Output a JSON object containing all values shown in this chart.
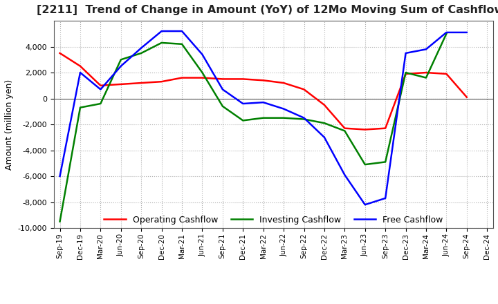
{
  "title": "[2211]  Trend of Change in Amount (YoY) of 12Mo Moving Sum of Cashflows",
  "ylabel": "Amount (million yen)",
  "ylim": [
    -10000,
    6000
  ],
  "yticks": [
    -10000,
    -8000,
    -6000,
    -4000,
    -2000,
    0,
    2000,
    4000
  ],
  "x_labels": [
    "Sep-19",
    "Dec-19",
    "Mar-20",
    "Jun-20",
    "Sep-20",
    "Dec-20",
    "Mar-21",
    "Jun-21",
    "Sep-21",
    "Dec-21",
    "Mar-22",
    "Jun-22",
    "Sep-22",
    "Dec-22",
    "Mar-23",
    "Jun-23",
    "Sep-23",
    "Dec-23",
    "Mar-24",
    "Jun-24",
    "Sep-24",
    "Dec-24"
  ],
  "operating": [
    3500,
    2500,
    1000,
    1100,
    1200,
    1300,
    1600,
    1600,
    1500,
    1500,
    1400,
    1200,
    700,
    -500,
    -2300,
    -2400,
    -2300,
    1900,
    2000,
    1900,
    100,
    null
  ],
  "investing": [
    -9500,
    -700,
    -400,
    3000,
    3500,
    4300,
    4200,
    2000,
    -600,
    -1700,
    -1500,
    -1500,
    -1600,
    -1900,
    -2500,
    -5100,
    -4900,
    2000,
    1600,
    5000,
    null,
    null
  ],
  "free": [
    -6000,
    2000,
    700,
    2500,
    3900,
    5200,
    5200,
    3400,
    700,
    -400,
    -300,
    -800,
    -1500,
    -3000,
    -5900,
    -8200,
    -7700,
    3500,
    3800,
    5100,
    5100,
    null
  ],
  "colors": {
    "operating": "#ff0000",
    "investing": "#008000",
    "free": "#0000ff"
  },
  "legend_labels": [
    "Operating Cashflow",
    "Investing Cashflow",
    "Free Cashflow"
  ],
  "background_color": "#ffffff",
  "grid_color": "#b0b0b0"
}
